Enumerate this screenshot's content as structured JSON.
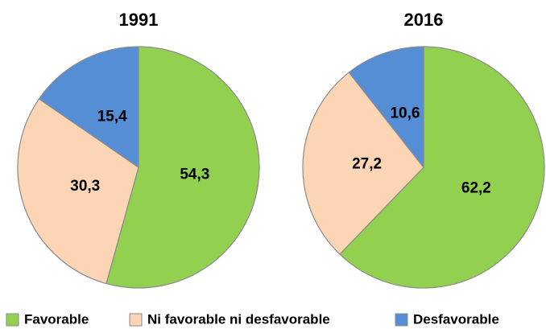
{
  "chart_data": [
    {
      "type": "pie",
      "title": "1991",
      "categories": [
        "Favorable",
        "Ni favorable ni desfavorable",
        "Desfavorable"
      ],
      "values": [
        54.3,
        30.3,
        15.4
      ],
      "value_labels": [
        "54,3",
        "30,3",
        "15,4"
      ],
      "colors": [
        "#92d050",
        "#fcd5b5",
        "#558ed5"
      ]
    },
    {
      "type": "pie",
      "title": "2016",
      "categories": [
        "Favorable",
        "Ni favorable ni desfavorable",
        "Desfavorable"
      ],
      "values": [
        62.2,
        27.2,
        10.6
      ],
      "value_labels": [
        "62,2",
        "27,2",
        "10,6"
      ],
      "colors": [
        "#92d050",
        "#fcd5b5",
        "#558ed5"
      ]
    }
  ]
}
